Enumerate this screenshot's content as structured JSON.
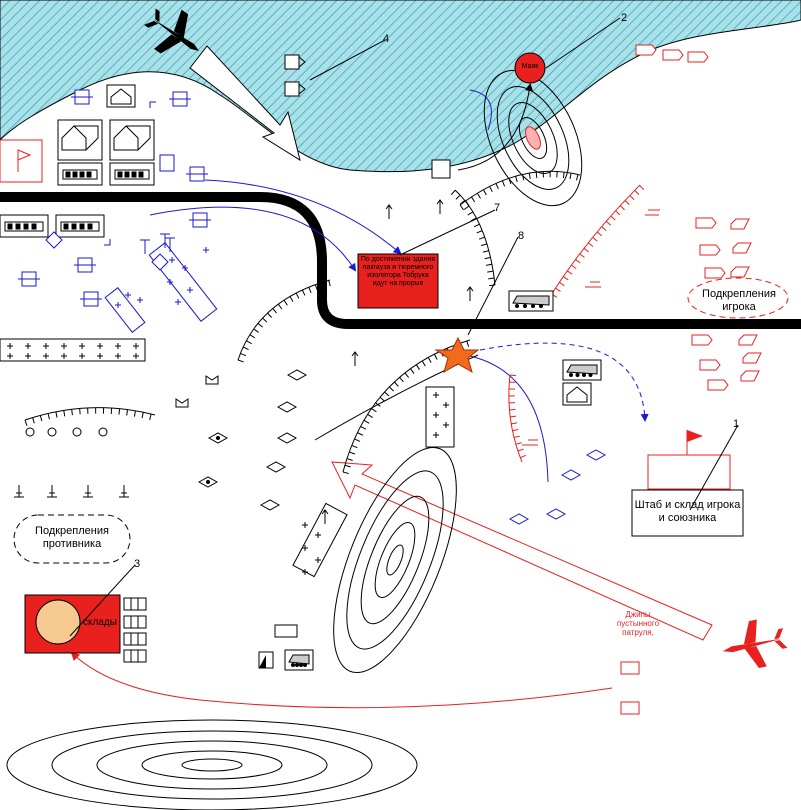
{
  "labels": {
    "lighthouse": "Маяк",
    "breakthrough_note": "По достижении здания пакгауза и тюремного изолятора Тобрука идут на прорыв",
    "player_reinforcements": "Подкрепления игрока",
    "enemy_reinforcements": "Подкрепления противника",
    "hq": "Штаб и склад игрока и союзника",
    "warehouses": "склады",
    "patrol_jeeps": "Джипы пустынного патруля,"
  },
  "markers": {
    "m1": "1",
    "m2": "2",
    "m3": "3",
    "m4": "4",
    "m7": "7",
    "m8": "8"
  },
  "colors": {
    "sea": "#a8e2e8",
    "sea_hatch": "#3a9ab8",
    "player": "#e8211f",
    "enemy": "#1a1ad0",
    "road": "#000000",
    "star": "#f26a1b",
    "sand_block": "#f5c98f"
  },
  "icons": {
    "aircraft": "aircraft-icon",
    "flag": "flag-icon",
    "barracks": "barracks-icon",
    "tank": "tank-icon",
    "explosion": "explosion-star-icon"
  }
}
